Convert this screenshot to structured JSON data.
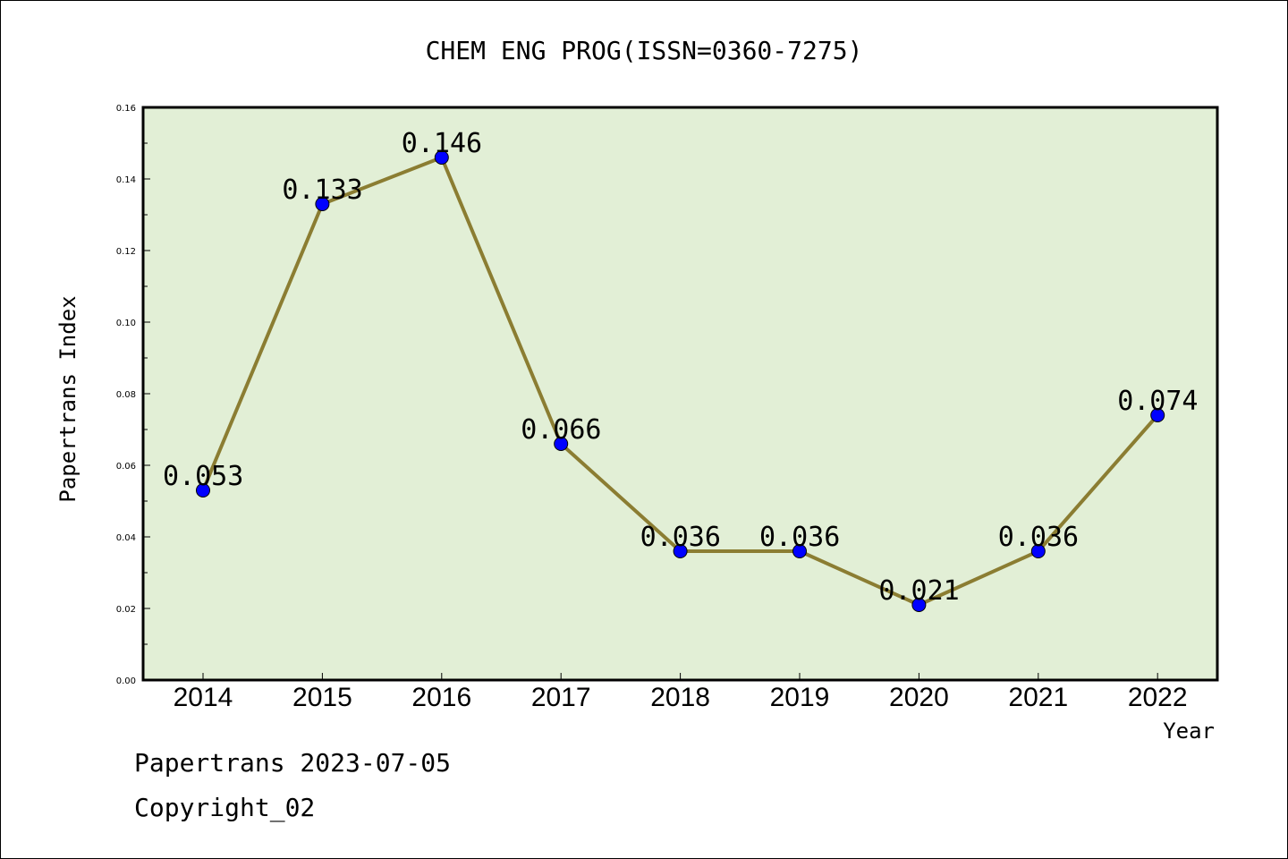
{
  "chart_data": {
    "type": "line",
    "title": "CHEM ENG PROG(ISSN=0360-7275)",
    "xlabel": "Year",
    "ylabel": "Papertrans Index",
    "categories": [
      "2014",
      "2015",
      "2016",
      "2017",
      "2018",
      "2019",
      "2020",
      "2021",
      "2022"
    ],
    "series": [
      {
        "values": [
          0.053,
          0.133,
          0.146,
          0.066,
          0.036,
          0.036,
          0.021,
          0.036,
          0.074
        ],
        "labels": [
          "0.053",
          "0.133",
          "0.146",
          "0.066",
          "0.036",
          "0.036",
          "0.021",
          "0.036",
          "0.074"
        ]
      }
    ],
    "ylim": [
      0,
      0.16
    ],
    "yticks": [
      "0.00",
      "0.02",
      "0.04",
      "0.06",
      "0.08",
      "0.10",
      "0.12",
      "0.14",
      "0.16"
    ],
    "grid": false,
    "colors": {
      "plot_background": "#e2efd6",
      "line": "#8b7d32",
      "marker": "#0000ff"
    }
  },
  "footer": {
    "line1": "Papertrans 2023-07-05",
    "line2": "Copyright_02"
  }
}
